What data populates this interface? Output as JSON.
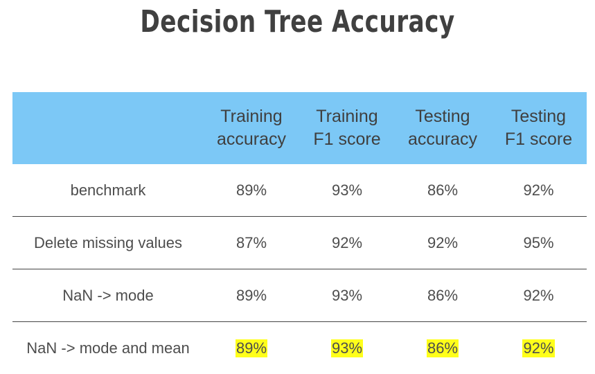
{
  "title": "Decision Tree Accuracy",
  "chart_data": {
    "type": "table",
    "title": "Decision Tree Accuracy",
    "columns": [
      "",
      "Training\naccuracy",
      "Training\nF1 score",
      "Testing\naccuracy",
      "Testing\nF1 score"
    ],
    "rows": [
      {
        "label": "benchmark",
        "values": [
          "89%",
          "93%",
          "86%",
          "92%"
        ],
        "highlight": false
      },
      {
        "label": "Delete missing values",
        "values": [
          "87%",
          "92%",
          "92%",
          "95%"
        ],
        "highlight": false
      },
      {
        "label": "NaN -> mode",
        "values": [
          "89%",
          "93%",
          "86%",
          "92%"
        ],
        "highlight": false
      },
      {
        "label": "NaN -> mode and mean",
        "values": [
          "89%",
          "93%",
          "86%",
          "92%"
        ],
        "highlight": true
      }
    ],
    "colors": {
      "header_bg": "#7cc8f6",
      "highlight": "#ffff1a"
    }
  }
}
